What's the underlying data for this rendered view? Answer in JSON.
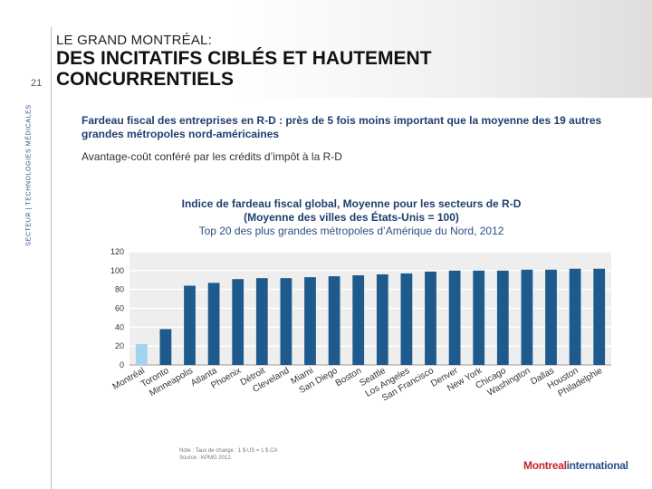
{
  "slide": {
    "number": "21",
    "side_label": "SECTEUR | TECHNOLOGIES MÉDICALES",
    "supertitle": "LE GRAND MONTRÉAL:",
    "title_line1": "DES INCITATIFS CIBLÉS ET HAUTEMENT",
    "title_line2": "CONCURRENTIELS",
    "subtitle": "Fardeau fiscal des entreprises en R-D : près de 5 fois moins important que la moyenne des 19 autres grandes métropoles nord-américaines",
    "subtitle2": "Avantage-coût conféré par les crédits d’impôt à la R-D",
    "note_line1": "Note : Taux de change : 1 $ US = 1 $ CA",
    "note_line2": "Source : KPMG 2012.",
    "logo_text_main": "Montreal",
    "logo_text_accent": "international"
  },
  "chart_data": {
    "type": "bar",
    "title_line1": "Indice de fardeau fiscal global, Moyenne pour les secteurs de R-D",
    "title_line2": "(Moyenne des villes des États-Unis = 100)",
    "title_line3": "Top 20 des plus grandes métropoles d’Amérique du Nord, 2012",
    "categories": [
      "Montréal",
      "Toronto",
      "Minneapolis",
      "Atlanta",
      "Phoenix",
      "Détroit",
      "Cleveland",
      "Miami",
      "San Diego",
      "Boston",
      "Seattle",
      "Los Angeles",
      "San Francisco",
      "Denver",
      "New York",
      "Chicago",
      "Washington",
      "Dallas",
      "Houston",
      "Philadelphie"
    ],
    "values": [
      22,
      38,
      84,
      87,
      91,
      92,
      92,
      93,
      94,
      95,
      96,
      97,
      99,
      100,
      100,
      100,
      101,
      101,
      102,
      102
    ],
    "highlight_index": 0,
    "ylim": [
      0,
      120
    ],
    "yticks": [
      0,
      20,
      40,
      60,
      80,
      100,
      120
    ],
    "bar_color": "#1f5a8c",
    "highlight_color": "#9fd3ef",
    "grid": true
  }
}
